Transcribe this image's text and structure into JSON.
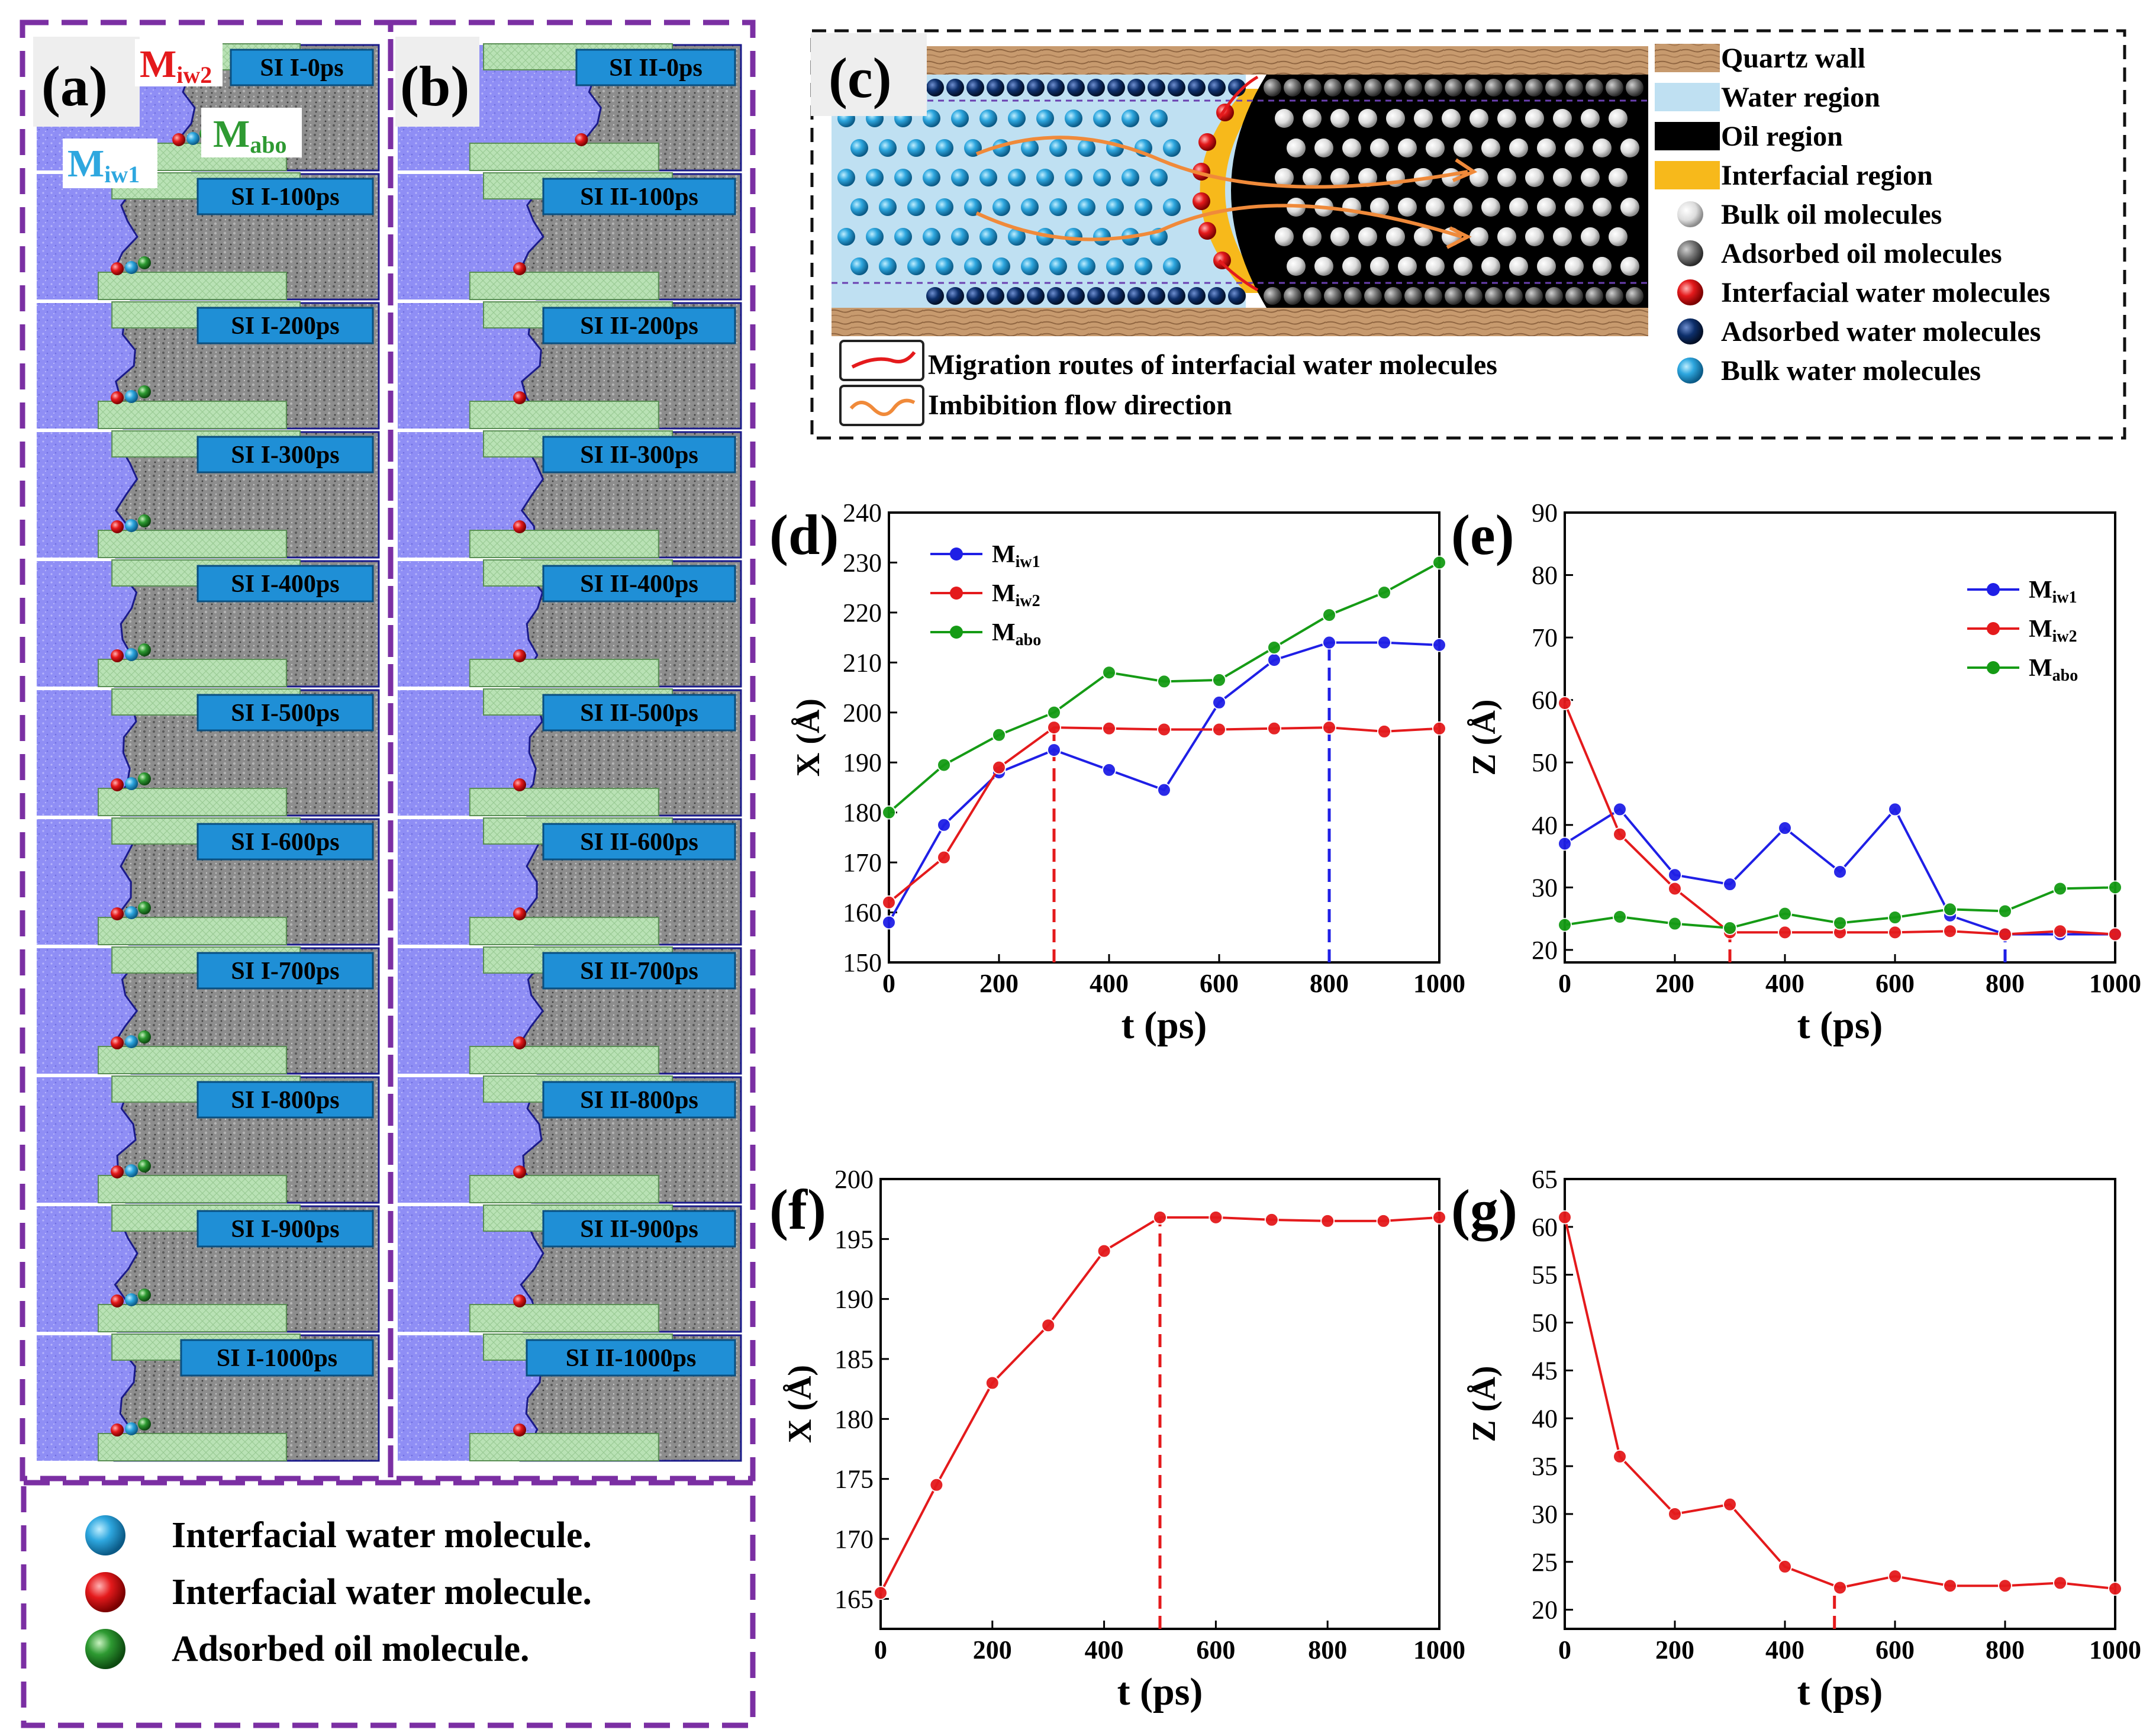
{
  "panel_letters": {
    "a": "(a)",
    "b": "(b)",
    "c": "(c)",
    "d": "(d)",
    "e": "(e)",
    "f": "(f)",
    "g": "(g)"
  },
  "sim_labels": {
    "a": [
      "SI I-0ps",
      "SI I-100ps",
      "SI I-200ps",
      "SI I-300ps",
      "SI I-400ps",
      "SI I-500ps",
      "SI I-600ps",
      "SI I-700ps",
      "SI I-800ps",
      "SI I-900ps",
      "SI I-1000ps"
    ],
    "b": [
      "SI II-0ps",
      "SI II-100ps",
      "SI II-200ps",
      "SI II-300ps",
      "SI II-400ps",
      "SI II-500ps",
      "SI II-600ps",
      "SI II-700ps",
      "SI II-800ps",
      "SI II-900ps",
      "SI II-1000ps"
    ]
  },
  "molecule_labels": {
    "miw2": {
      "main": "M",
      "sub": "iw2"
    },
    "mabo": {
      "main": "M",
      "sub": "abo"
    },
    "miw1": {
      "main": "M",
      "sub": "iw1"
    }
  },
  "bottom_legend": [
    {
      "text": "Interfacial water molecule.",
      "color": "#2ea7df"
    },
    {
      "text": "Interfacial water molecule.",
      "color": "#e41a1c"
    },
    {
      "text": "Adsorbed oil molecule.",
      "color": "#2e9a32"
    }
  ],
  "schematic": {
    "legend": [
      {
        "text": "Quartz wall",
        "swatch": "#c79a6e"
      },
      {
        "text": "Water region",
        "swatch": "#bfe0f2"
      },
      {
        "text": "Oil region",
        "swatch": "#000000"
      },
      {
        "text": "Interfacial region",
        "swatch": "#f7b91b"
      },
      {
        "text": "Bulk oil molecules",
        "ball": "#e8e8e8"
      },
      {
        "text": "Adsorbed oil molecules",
        "ball": "#777777"
      },
      {
        "text": "Interfacial water molecules",
        "ball": "#e41a1c"
      },
      {
        "text": "Adsorbed water molecules",
        "ball": "#0d2f6b"
      },
      {
        "text": "Bulk water molecules",
        "ball": "#2ea7df"
      }
    ],
    "route_legend": [
      {
        "text": "Migration routes of interfacial water molecules"
      },
      {
        "text": "Imbibition flow direction"
      }
    ]
  },
  "chart_data": [
    {
      "id": "d",
      "type": "line",
      "xlabel": "t (ps)",
      "ylabel": "X (Å)",
      "xlim": [
        0,
        1000
      ],
      "ylim": [
        150,
        240
      ],
      "xticks": [
        0,
        200,
        400,
        600,
        800,
        1000
      ],
      "yticks": [
        150,
        160,
        170,
        180,
        190,
        200,
        210,
        220,
        230,
        240
      ],
      "x": [
        0,
        100,
        200,
        300,
        400,
        500,
        600,
        700,
        800,
        900,
        1000
      ],
      "series": [
        {
          "name": "Miw1",
          "label": "M",
          "sub": "iw1",
          "color": "#1f1fe6",
          "values": [
            158,
            177.5,
            188,
            192.5,
            188.5,
            184.5,
            202,
            210.5,
            214,
            214,
            213.5
          ]
        },
        {
          "name": "Miw2",
          "label": "M",
          "sub": "iw2",
          "color": "#e41a1c",
          "values": [
            162,
            171,
            189,
            197,
            196.8,
            196.6,
            196.6,
            196.8,
            197,
            196.2,
            196.8
          ]
        },
        {
          "name": "Mabo",
          "label": "M",
          "sub": "abo",
          "color": "#159b15",
          "values": [
            180,
            189.5,
            195.5,
            200,
            208,
            206.2,
            206.5,
            213,
            219.5,
            224,
            230
          ]
        }
      ],
      "vlines": [
        {
          "x": 300,
          "color": "#e41a1c"
        },
        {
          "x": 800,
          "color": "#1f1fe6"
        }
      ],
      "legend": "top-left"
    },
    {
      "id": "e",
      "type": "line",
      "xlabel": "t (ps)",
      "ylabel": "Z (Å)",
      "xlim": [
        0,
        1000
      ],
      "ylim": [
        18,
        90
      ],
      "xticks": [
        0,
        200,
        400,
        600,
        800,
        1000
      ],
      "yticks": [
        20,
        30,
        40,
        50,
        60,
        70,
        80,
        90
      ],
      "x": [
        0,
        100,
        200,
        300,
        400,
        500,
        600,
        700,
        800,
        900,
        1000
      ],
      "series": [
        {
          "name": "Miw1",
          "label": "M",
          "sub": "iw1",
          "color": "#1f1fe6",
          "values": [
            37,
            42.5,
            32,
            30.5,
            39.5,
            32.5,
            42.5,
            25.5,
            22.5,
            22.5,
            22.5
          ]
        },
        {
          "name": "Miw2",
          "label": "M",
          "sub": "iw2",
          "color": "#e41a1c",
          "values": [
            59.5,
            38.5,
            29.8,
            22.8,
            22.8,
            22.8,
            22.8,
            23,
            22.5,
            23,
            22.5
          ]
        },
        {
          "name": "Mabo",
          "label": "M",
          "sub": "abo",
          "color": "#159b15",
          "values": [
            24,
            25.3,
            24.2,
            23.5,
            25.8,
            24.3,
            25.2,
            26.5,
            26.2,
            29.8,
            30
          ]
        }
      ],
      "vlines": [
        {
          "x": 300,
          "color": "#e41a1c"
        },
        {
          "x": 800,
          "color": "#1f1fe6"
        }
      ],
      "legend": "top-right"
    },
    {
      "id": "f",
      "type": "line",
      "xlabel": "t (ps)",
      "ylabel": "X (Å)",
      "xlim": [
        0,
        1000
      ],
      "ylim": [
        162.5,
        200
      ],
      "xticks": [
        0,
        200,
        400,
        600,
        800,
        1000
      ],
      "yticks": [
        165,
        170,
        175,
        180,
        185,
        190,
        195,
        200
      ],
      "x": [
        0,
        100,
        200,
        300,
        400,
        500,
        600,
        700,
        800,
        900,
        1000
      ],
      "series": [
        {
          "name": "Miw2",
          "color": "#e41a1c",
          "values": [
            165.5,
            174.5,
            183,
            187.8,
            194,
            196.8,
            196.8,
            196.6,
            196.5,
            196.5,
            196.8
          ]
        }
      ],
      "vlines": [
        {
          "x": 500,
          "color": "#e41a1c"
        }
      ]
    },
    {
      "id": "g",
      "type": "line",
      "xlabel": "t (ps)",
      "ylabel": "Z (Å)",
      "xlim": [
        0,
        1000
      ],
      "ylim": [
        18,
        65
      ],
      "xticks": [
        0,
        200,
        400,
        600,
        800,
        1000
      ],
      "yticks": [
        20,
        25,
        30,
        35,
        40,
        45,
        50,
        55,
        60,
        65
      ],
      "x": [
        0,
        100,
        200,
        300,
        400,
        500,
        600,
        700,
        800,
        900,
        1000
      ],
      "series": [
        {
          "name": "Miw2",
          "color": "#e41a1c",
          "values": [
            61,
            36,
            30,
            31,
            24.5,
            22.3,
            23.5,
            22.5,
            22.5,
            22.8,
            22.2
          ]
        }
      ],
      "vlines": [
        {
          "x": 490,
          "color": "#e41a1c",
          "ymax": 21.5
        }
      ]
    }
  ]
}
